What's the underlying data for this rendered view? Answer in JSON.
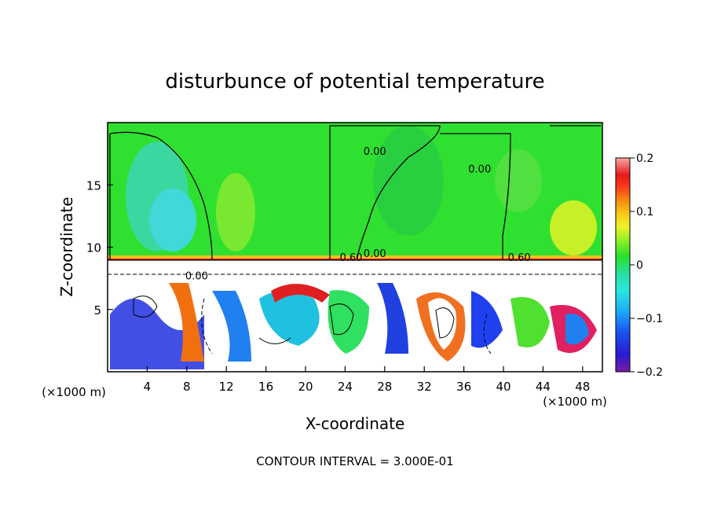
{
  "chart_data": {
    "type": "heatmap",
    "title": "disturbunce of potential temperature",
    "xlabel": "X-coordinate",
    "ylabel": "Z-coordinate",
    "x_unit_left": "(×1000 m)",
    "x_unit_right": "(×1000 m)",
    "footer": "CONTOUR INTERVAL = 3.000E-01",
    "xlim": [
      0,
      50
    ],
    "ylim": [
      0,
      20
    ],
    "x_ticks": [
      4,
      8,
      12,
      16,
      20,
      24,
      28,
      32,
      36,
      40,
      44,
      48
    ],
    "y_ticks": [
      5,
      10,
      15
    ],
    "grid": false,
    "colorbar": {
      "range": [
        -0.2,
        0.2
      ],
      "tick_values": [
        -0.2,
        -0.1,
        0,
        0.1,
        0.2
      ],
      "tick_labels": [
        "−0.2",
        "−0.1",
        "0",
        "0.1",
        "0.2"
      ]
    },
    "contour_labels": [
      {
        "text": "0.00",
        "x": 27.0,
        "y": 17.4
      },
      {
        "text": "0.00",
        "x": 37.6,
        "y": 16.0
      },
      {
        "text": "0.00",
        "x": 27.0,
        "y": 9.2
      },
      {
        "text": "0.60",
        "x": 41.6,
        "y": 8.9
      },
      {
        "text": "0.60",
        "x": 24.6,
        "y": 8.9
      },
      {
        "text": "0.00",
        "x": 9.0,
        "y": 7.4
      }
    ]
  }
}
